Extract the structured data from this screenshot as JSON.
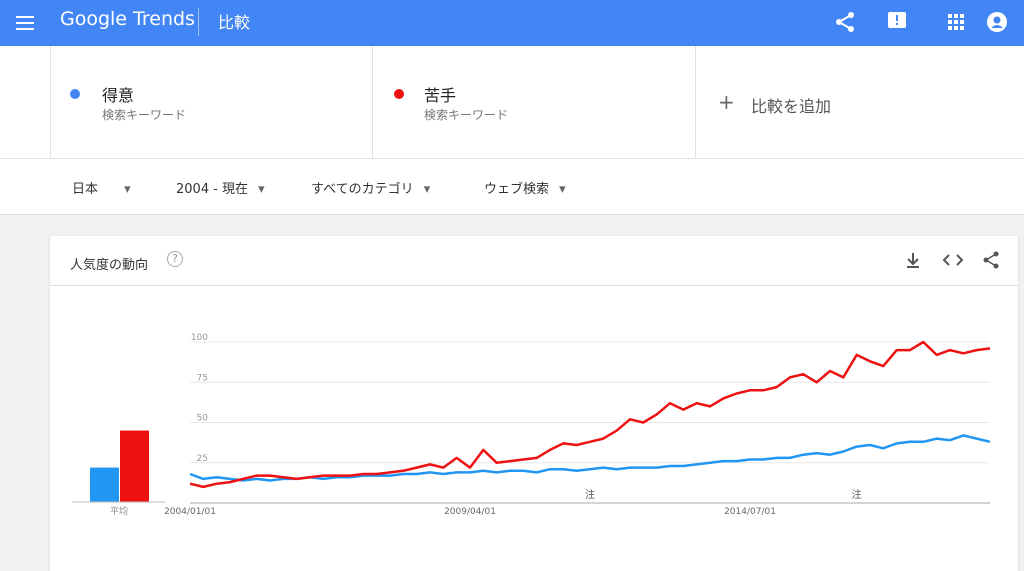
{
  "header": {
    "logo": "Google Trends",
    "title": "比較"
  },
  "terms": {
    "subtitle": "検索キーワード",
    "add": "比較を追加"
  },
  "filters": [
    "日本",
    "2004 - 現在",
    "すべてのカテゴリ",
    "ウェブ検索"
  ],
  "card": {
    "title": "人気度の動向"
  },
  "chart_data": {
    "type": "line",
    "categories": [
      "2004/01/01",
      null,
      null,
      null,
      null,
      null,
      null,
      null,
      null,
      null,
      null,
      null,
      null,
      null,
      null,
      null,
      null,
      null,
      null,
      null,
      null,
      "2009/04/01",
      null,
      null,
      null,
      null,
      null,
      null,
      null,
      null,
      null,
      null,
      null,
      null,
      null,
      null,
      null,
      null,
      null,
      null,
      null,
      null,
      "2014/07/01",
      null,
      null,
      null,
      null,
      null,
      null,
      null,
      null,
      null,
      null,
      null,
      null,
      null,
      null,
      null,
      null,
      null,
      null
    ],
    "series": [
      {
        "name": "得意",
        "color": "#2196f3",
        "values": [
          18,
          15,
          16,
          15,
          14,
          15,
          14,
          15,
          15,
          16,
          15,
          16,
          16,
          17,
          17,
          17,
          18,
          18,
          19,
          18,
          19,
          19,
          20,
          19,
          20,
          20,
          19,
          21,
          21,
          20,
          21,
          22,
          21,
          22,
          22,
          22,
          23,
          23,
          24,
          25,
          26,
          26,
          27,
          27,
          28,
          28,
          30,
          31,
          30,
          32,
          35,
          36,
          34,
          37,
          38,
          38,
          40,
          39,
          42,
          40,
          38
        ]
      },
      {
        "name": "苦手",
        "color": "#ee1111",
        "values": [
          12,
          10,
          12,
          13,
          15,
          17,
          17,
          16,
          15,
          16,
          17,
          17,
          17,
          18,
          18,
          19,
          20,
          22,
          24,
          22,
          28,
          22,
          33,
          25,
          26,
          27,
          28,
          33,
          37,
          36,
          38,
          40,
          45,
          52,
          50,
          55,
          62,
          58,
          62,
          60,
          65,
          68,
          70,
          70,
          72,
          78,
          80,
          75,
          82,
          78,
          92,
          88,
          85,
          95,
          95,
          100,
          92,
          95,
          93,
          95,
          96
        ]
      }
    ],
    "average": {
      "label": "平均",
      "values": [
        22,
        45
      ]
    },
    "annotations": [
      {
        "text": "注",
        "at": 30
      },
      {
        "text": "注",
        "at": 50
      }
    ],
    "ylim": [
      0,
      100
    ],
    "yticks": [
      25,
      50,
      75,
      100
    ],
    "grid": true
  }
}
